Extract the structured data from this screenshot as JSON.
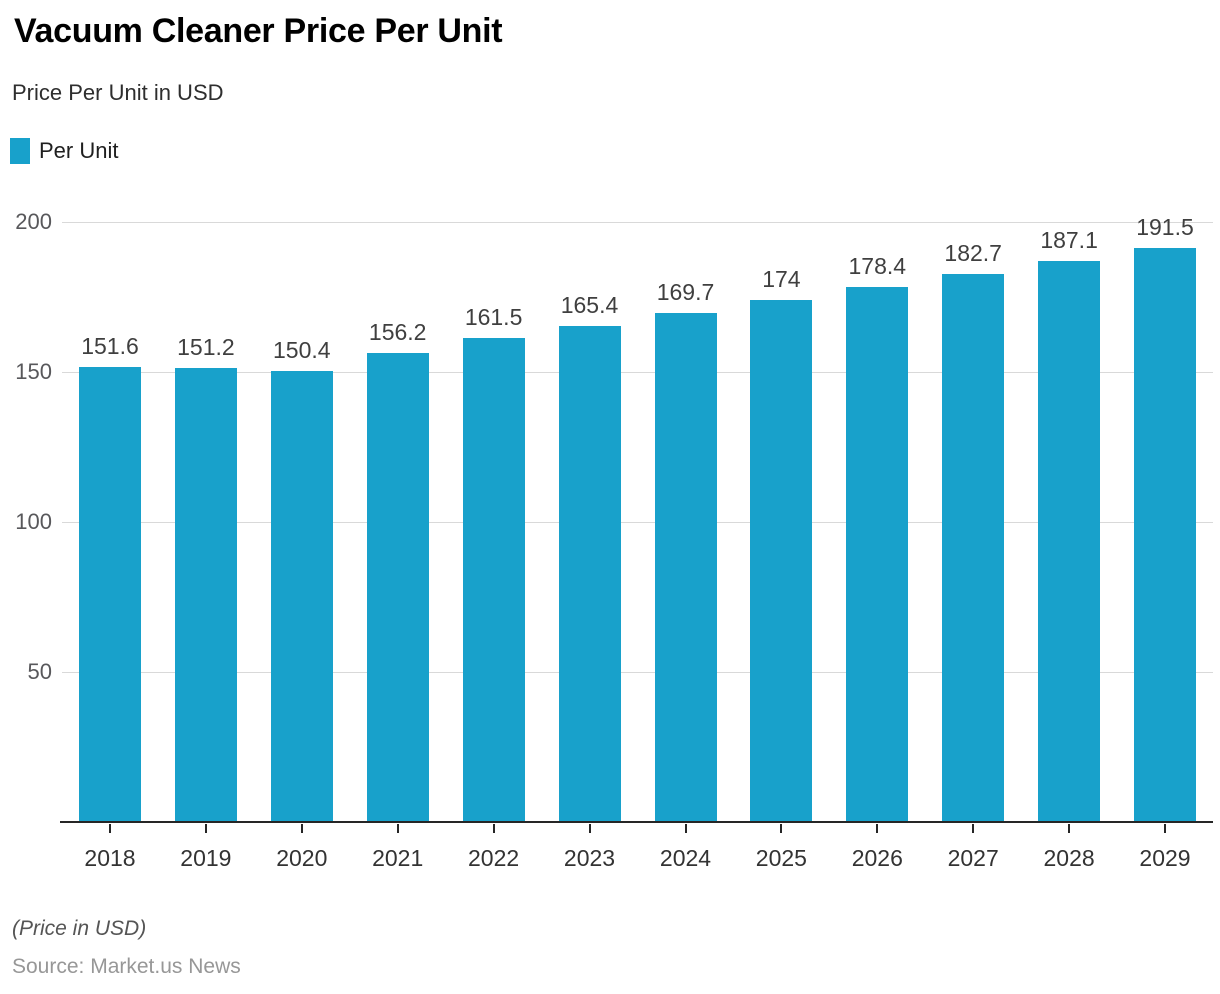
{
  "header": {
    "title": "Vacuum Cleaner Price Per Unit",
    "subtitle": "Price Per Unit in USD"
  },
  "legend": {
    "label": "Per Unit",
    "swatch_color": "#18a1cb"
  },
  "chart_data": {
    "type": "bar",
    "title": "Vacuum Cleaner Price Per Unit",
    "subtitle": "Price Per Unit in USD",
    "series_name": "Per Unit",
    "categories": [
      "2018",
      "2019",
      "2020",
      "2021",
      "2022",
      "2023",
      "2024",
      "2025",
      "2026",
      "2027",
      "2028",
      "2029"
    ],
    "values": [
      151.6,
      151.2,
      150.4,
      156.2,
      161.5,
      165.4,
      169.7,
      174,
      178.4,
      182.7,
      187.1,
      191.5
    ],
    "value_labels": [
      "151.6",
      "151.2",
      "150.4",
      "156.2",
      "161.5",
      "165.4",
      "169.7",
      "174",
      "178.4",
      "182.7",
      "187.1",
      "191.5"
    ],
    "xlabel": "",
    "ylabel": "",
    "ylim": [
      0,
      200
    ],
    "yticks": [
      50,
      100,
      150,
      200
    ],
    "grid": true,
    "legend_position": "top-left",
    "colors": {
      "bar": "#18a1cb",
      "gridline": "#d9d9d9",
      "axis_line": "#262626"
    }
  },
  "footer": {
    "note": "(Price in USD)",
    "source": "Source: Market.us News"
  }
}
